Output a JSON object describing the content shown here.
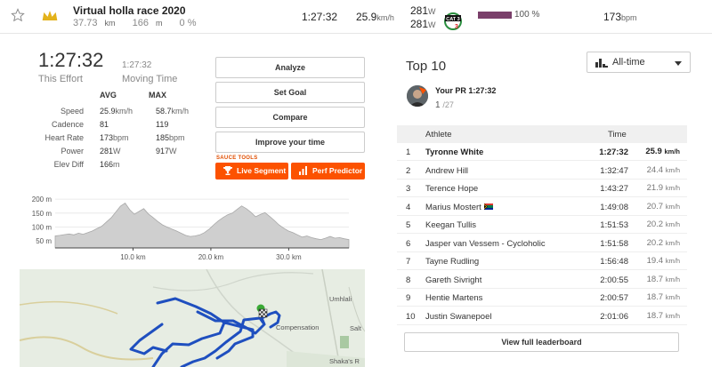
{
  "topbar": {
    "segment_name": "Virtual holla race 2020",
    "distance": "37.73",
    "distance_unit": "km",
    "elevation": "166",
    "elevation_unit": "m",
    "grade": "0 %",
    "time": "1:27:32",
    "speed": "25.9",
    "speed_unit": "km/h",
    "power1": "281",
    "power2": "281",
    "power_unit": "W",
    "category_badge": "CAT 3",
    "completion_percent": 100,
    "completion_label": "100 %",
    "heartrate": "173",
    "heartrate_unit": "bpm"
  },
  "effort": {
    "time": "1:27:32",
    "time_label": "This Effort",
    "moving_time": "1:27:32",
    "moving_label": "Moving Time"
  },
  "stats": {
    "avg_header": "AVG",
    "max_header": "MAX",
    "rows": [
      {
        "label": "Speed",
        "avg": "25.9",
        "avg_unit": "km/h",
        "max": "58.7",
        "max_unit": "km/h"
      },
      {
        "label": "Cadence",
        "avg": "81",
        "avg_unit": "",
        "max": "119",
        "max_unit": ""
      },
      {
        "label": "Heart Rate",
        "avg": "173",
        "avg_unit": "bpm",
        "max": "185",
        "max_unit": "bpm"
      },
      {
        "label": "Power",
        "avg": "281",
        "avg_unit": "W",
        "max": "917",
        "max_unit": "W"
      },
      {
        "label": "Elev Diff",
        "avg": "166",
        "avg_unit": "m",
        "max": "",
        "max_unit": ""
      }
    ]
  },
  "buttons": {
    "analyze": "Analyze",
    "set_goal": "Set Goal",
    "compare": "Compare",
    "improve": "Improve your time"
  },
  "sauce": {
    "label": "SAUCE TOOLS",
    "live_segment": "Live Segment",
    "perf_predictor": "Perf Predictor"
  },
  "elevation_chart": {
    "y_ticks": [
      "200 m",
      "150 m",
      "100 m",
      "50 m"
    ],
    "x_ticks": [
      "10.0 km",
      "20.0 km",
      "30.0 km"
    ],
    "profile_m": [
      68,
      70,
      73,
      75,
      72,
      78,
      74,
      80,
      86,
      95,
      103,
      118,
      133,
      154,
      175,
      186,
      162,
      146,
      156,
      166,
      147,
      134,
      120,
      108,
      100,
      93,
      86,
      78,
      70,
      66,
      68,
      72,
      80,
      92,
      108,
      122,
      134,
      144,
      150,
      163,
      176,
      166,
      153,
      137,
      145,
      152,
      138,
      124,
      108,
      96,
      86,
      80,
      72,
      64,
      68,
      62,
      58,
      55,
      60,
      66,
      60,
      62,
      58,
      55
    ]
  },
  "map": {
    "labels": [
      "Umhlali",
      "Compensation",
      "Salt",
      "Shaka's R"
    ]
  },
  "leaderboard": {
    "title": "Top 10",
    "filter": "All-time",
    "pr_title": "Your PR 1:27:32",
    "pr_rank": "1",
    "pr_total": "/27",
    "col_athlete": "Athlete",
    "col_time": "Time",
    "speed_unit": "km/h",
    "rows": [
      {
        "rank": "1",
        "name": "Tyronne White",
        "time": "1:27:32",
        "speed": "25.9",
        "flag": false
      },
      {
        "rank": "2",
        "name": "Andrew Hill",
        "time": "1:32:47",
        "speed": "24.4",
        "flag": false
      },
      {
        "rank": "3",
        "name": "Terence Hope",
        "time": "1:43:27",
        "speed": "21.9",
        "flag": false
      },
      {
        "rank": "4",
        "name": "Marius Mostert",
        "time": "1:49:08",
        "speed": "20.7",
        "flag": true
      },
      {
        "rank": "5",
        "name": "Keegan Tullis",
        "time": "1:51:53",
        "speed": "20.2",
        "flag": false
      },
      {
        "rank": "6",
        "name": "Jasper van Vessem - Cycloholic",
        "time": "1:51:58",
        "speed": "20.2",
        "flag": false
      },
      {
        "rank": "7",
        "name": "Tayne Rudling",
        "time": "1:56:48",
        "speed": "19.4",
        "flag": false
      },
      {
        "rank": "8",
        "name": "Gareth Sivright",
        "time": "2:00:55",
        "speed": "18.7",
        "flag": false
      },
      {
        "rank": "9",
        "name": "Hentie Martens",
        "time": "2:00:57",
        "speed": "18.7",
        "flag": false
      },
      {
        "rank": "10",
        "name": "Justin Swanepoel",
        "time": "2:01:06",
        "speed": "18.7",
        "flag": false
      }
    ],
    "view_full": "View full leaderboard"
  },
  "colors": {
    "accent": "#fc5200",
    "completion_bar": "#7a3f6a",
    "route": "#1f4fbf"
  }
}
